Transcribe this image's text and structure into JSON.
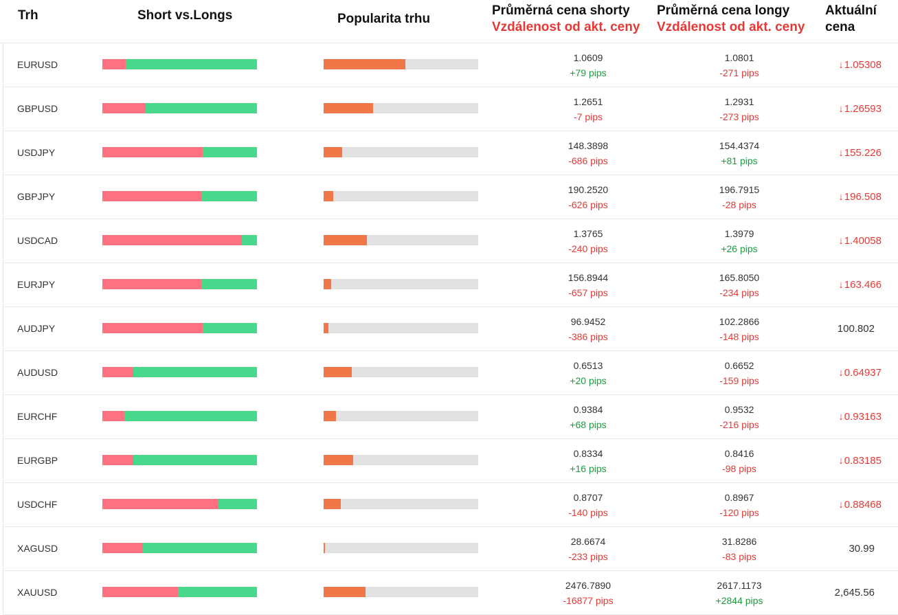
{
  "colors": {
    "short": "#ff7080",
    "long": "#47d88c",
    "popularity": "#f07848",
    "pips_positive": "#1a9c3e",
    "pips_negative": "#e53935",
    "price_down": "#e53935",
    "price_neutral": "#333333"
  },
  "header": {
    "market": "Trh",
    "short_vs_long": "Short vs.Longs",
    "popularity": "Popularita trhu",
    "avg_short": "Průměrná cena shorty",
    "avg_short_sub": "Vzdálenost od akt. ceny",
    "avg_long": "Průměrná cena longy",
    "avg_long_sub": "Vzdálenost od akt. ceny",
    "current": "Aktuální",
    "current_line2": "cena"
  },
  "rows": [
    {
      "market": "EURUSD",
      "short_pct": 15,
      "popularity_pct": 53,
      "avg_short": "1.0609",
      "short_pips": "+79 pips",
      "avg_long": "1.0801",
      "long_pips": "-271 pips",
      "current": "1.05308",
      "direction": "down"
    },
    {
      "market": "GBPUSD",
      "short_pct": 28,
      "popularity_pct": 32,
      "avg_short": "1.2651",
      "short_pips": "-7 pips",
      "avg_long": "1.2931",
      "long_pips": "-273 pips",
      "current": "1.26593",
      "direction": "down"
    },
    {
      "market": "USDJPY",
      "short_pct": 65,
      "popularity_pct": 12,
      "avg_short": "148.3898",
      "short_pips": "-686 pips",
      "avg_long": "154.4374",
      "long_pips": "+81 pips",
      "current": "155.226",
      "direction": "down"
    },
    {
      "market": "GBPJPY",
      "short_pct": 64,
      "popularity_pct": 6,
      "avg_short": "190.2520",
      "short_pips": "-626 pips",
      "avg_long": "196.7915",
      "long_pips": "-28 pips",
      "current": "196.508",
      "direction": "down"
    },
    {
      "market": "USDCAD",
      "short_pct": 90,
      "popularity_pct": 28,
      "avg_short": "1.3765",
      "short_pips": "-240 pips",
      "avg_long": "1.3979",
      "long_pips": "+26 pips",
      "current": "1.40058",
      "direction": "down"
    },
    {
      "market": "EURJPY",
      "short_pct": 64,
      "popularity_pct": 5,
      "avg_short": "156.8944",
      "short_pips": "-657 pips",
      "avg_long": "165.8050",
      "long_pips": "-234 pips",
      "current": "163.466",
      "direction": "down"
    },
    {
      "market": "AUDJPY",
      "short_pct": 65,
      "popularity_pct": 3,
      "avg_short": "96.9452",
      "short_pips": "-386 pips",
      "avg_long": "102.2866",
      "long_pips": "-148 pips",
      "current": "100.802",
      "direction": "none"
    },
    {
      "market": "AUDUSD",
      "short_pct": 20,
      "popularity_pct": 18,
      "avg_short": "0.6513",
      "short_pips": "+20 pips",
      "avg_long": "0.6652",
      "long_pips": "-159 pips",
      "current": "0.64937",
      "direction": "down"
    },
    {
      "market": "EURCHF",
      "short_pct": 14,
      "popularity_pct": 8,
      "avg_short": "0.9384",
      "short_pips": "+68 pips",
      "avg_long": "0.9532",
      "long_pips": "-216 pips",
      "current": "0.93163",
      "direction": "down"
    },
    {
      "market": "EURGBP",
      "short_pct": 20,
      "popularity_pct": 19,
      "avg_short": "0.8334",
      "short_pips": "+16 pips",
      "avg_long": "0.8416",
      "long_pips": "-98 pips",
      "current": "0.83185",
      "direction": "down"
    },
    {
      "market": "USDCHF",
      "short_pct": 75,
      "popularity_pct": 11,
      "avg_short": "0.8707",
      "short_pips": "-140 pips",
      "avg_long": "0.8967",
      "long_pips": "-120 pips",
      "current": "0.88468",
      "direction": "down"
    },
    {
      "market": "XAGUSD",
      "short_pct": 26,
      "popularity_pct": 1,
      "avg_short": "28.6674",
      "short_pips": "-233 pips",
      "avg_long": "31.8286",
      "long_pips": "-83 pips",
      "current": "30.99",
      "direction": "none"
    },
    {
      "market": "XAUUSD",
      "short_pct": 49,
      "popularity_pct": 27,
      "avg_short": "2476.7890",
      "short_pips": "-16877 pips",
      "avg_long": "2617.1173",
      "long_pips": "+2844 pips",
      "current": "2,645.56",
      "direction": "none"
    }
  ]
}
